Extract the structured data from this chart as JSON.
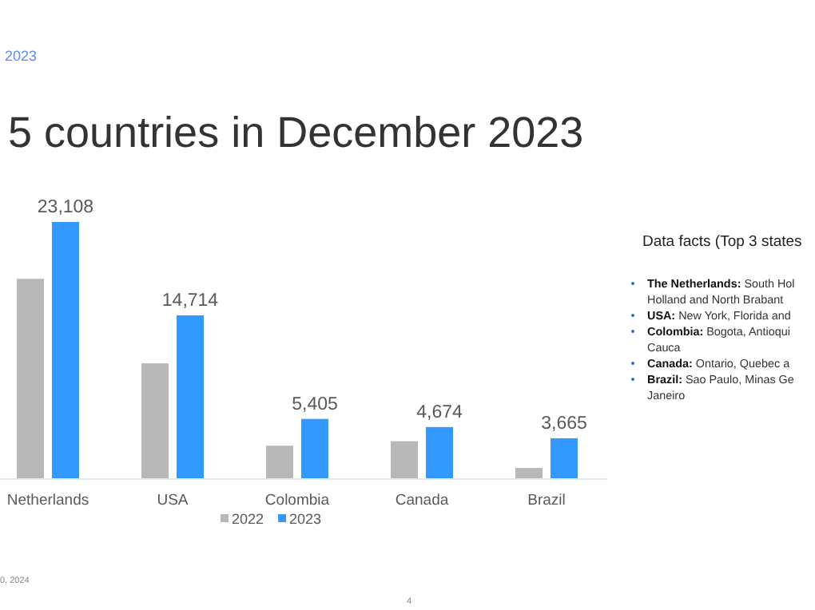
{
  "chart_data": {
    "type": "bar",
    "title": "5 countries in December 2023",
    "subtitle": "2023",
    "categories": [
      "Netherlands",
      "USA",
      "Colombia",
      "Canada",
      "Brazil"
    ],
    "series": [
      {
        "name": "2022",
        "color": "#b8b8b8",
        "values": [
          18000,
          10400,
          3000,
          3400,
          1000
        ]
      },
      {
        "name": "2023",
        "color": "#3399ff",
        "values": [
          23108,
          14714,
          5405,
          4674,
          3665
        ],
        "value_labels": [
          "23,108",
          "14,714",
          "5,405",
          "4,674",
          "3,665"
        ]
      }
    ],
    "legend": "bottom",
    "grid": false,
    "annotations": [
      "Data facts (Top 3 states",
      "The Netherlands: South Hol\nHolland and North Brabant",
      "USA: New York, Florida and",
      "Colombia: Bogota, Antioqui\nCauca",
      "Canada: Ontario, Quebec a",
      "Brazil: Sao Paulo, Minas Ge\nJaneiro",
      "0, 2024",
      "4"
    ]
  }
}
